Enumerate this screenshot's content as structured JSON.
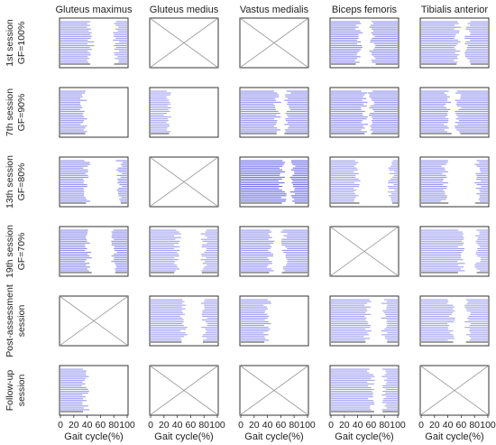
{
  "chart_data": {
    "type": "heatmap",
    "columns": [
      "Gluteus maximus",
      "Gluteus medius",
      "Vastus medialis",
      "Biceps femoris",
      "Tibialis anterior"
    ],
    "rows": [
      {
        "line1": "1st session",
        "line2": "GF=100%"
      },
      {
        "line1": "7th session",
        "line2": "GF=90%"
      },
      {
        "line1": "13th session",
        "line2": "GF=80%"
      },
      {
        "line1": "19th session",
        "line2": "GF=70%"
      },
      {
        "line1": "Post-assessment",
        "line2": "session"
      },
      {
        "line1": "Follow-up",
        "line2": "session"
      }
    ],
    "xlabel": "Gait cycle(%)",
    "xticks": [
      "0",
      "20",
      "40",
      "60",
      "80",
      "100"
    ],
    "xlim": [
      0,
      100
    ],
    "cells": [
      [
        {
          "available": true,
          "intensity": 0.45,
          "segments": [
            [
              0,
              45
            ],
            [
              83,
              100
            ]
          ]
        },
        {
          "available": false
        },
        {
          "available": false
        },
        {
          "available": true,
          "intensity": 0.55,
          "segments": [
            [
              0,
              42
            ],
            [
              62,
              100
            ]
          ]
        },
        {
          "available": true,
          "intensity": 0.45,
          "segments": [
            [
              0,
              55
            ],
            [
              70,
              100
            ]
          ]
        }
      ],
      [
        {
          "available": true,
          "intensity": 0.5,
          "segments": [
            [
              0,
              35
            ]
          ]
        },
        {
          "available": true,
          "intensity": 0.35,
          "segments": [
            [
              0,
              25
            ]
          ]
        },
        {
          "available": true,
          "intensity": 0.55,
          "segments": [
            [
              0,
              55
            ],
            [
              70,
              100
            ]
          ]
        },
        {
          "available": true,
          "intensity": 0.55,
          "segments": [
            [
              0,
              50
            ],
            [
              60,
              100
            ]
          ]
        },
        {
          "available": true,
          "intensity": 0.5,
          "segments": [
            [
              0,
              40
            ],
            [
              55,
              100
            ]
          ]
        }
      ],
      [
        {
          "available": true,
          "intensity": 0.55,
          "segments": [
            [
              0,
              40
            ],
            [
              88,
              100
            ]
          ]
        },
        {
          "available": false
        },
        {
          "available": true,
          "intensity": 0.9,
          "segments": [
            [
              0,
              63
            ],
            [
              78,
              100
            ]
          ]
        },
        {
          "available": true,
          "intensity": 0.4,
          "segments": [
            [
              0,
              40
            ],
            [
              90,
              100
            ]
          ]
        },
        {
          "available": true,
          "intensity": 0.5,
          "segments": [
            [
              0,
              35
            ],
            [
              85,
              100
            ]
          ]
        }
      ],
      [
        {
          "available": true,
          "intensity": 0.6,
          "segments": [
            [
              0,
              42
            ],
            [
              80,
              100
            ]
          ]
        },
        {
          "available": true,
          "intensity": 0.4,
          "segments": [
            [
              0,
              40
            ],
            [
              80,
              100
            ]
          ]
        },
        {
          "available": true,
          "intensity": 0.5,
          "segments": [
            [
              0,
              45
            ],
            [
              65,
              100
            ]
          ]
        },
        {
          "available": false
        },
        {
          "available": true,
          "intensity": 0.4,
          "segments": [
            [
              0,
              60
            ],
            [
              85,
              100
            ]
          ]
        }
      ],
      [
        {
          "available": false
        },
        {
          "available": true,
          "intensity": 0.4,
          "segments": [
            [
              0,
              50
            ],
            [
              80,
              100
            ]
          ]
        },
        {
          "available": true,
          "intensity": 0.45,
          "segments": [
            [
              0,
              40
            ]
          ]
        },
        {
          "available": true,
          "intensity": 0.4,
          "segments": [
            [
              0,
              55
            ],
            [
              80,
              100
            ]
          ]
        },
        {
          "available": true,
          "intensity": 0.35,
          "segments": [
            [
              0,
              45
            ],
            [
              70,
              100
            ]
          ]
        }
      ],
      [
        {
          "available": true,
          "intensity": 0.45,
          "segments": [
            [
              0,
              38
            ]
          ]
        },
        {
          "available": false
        },
        {
          "available": false
        },
        {
          "available": true,
          "intensity": 0.4,
          "segments": [
            [
              0,
              60
            ],
            [
              80,
              100
            ]
          ]
        },
        {
          "available": false
        }
      ]
    ]
  }
}
